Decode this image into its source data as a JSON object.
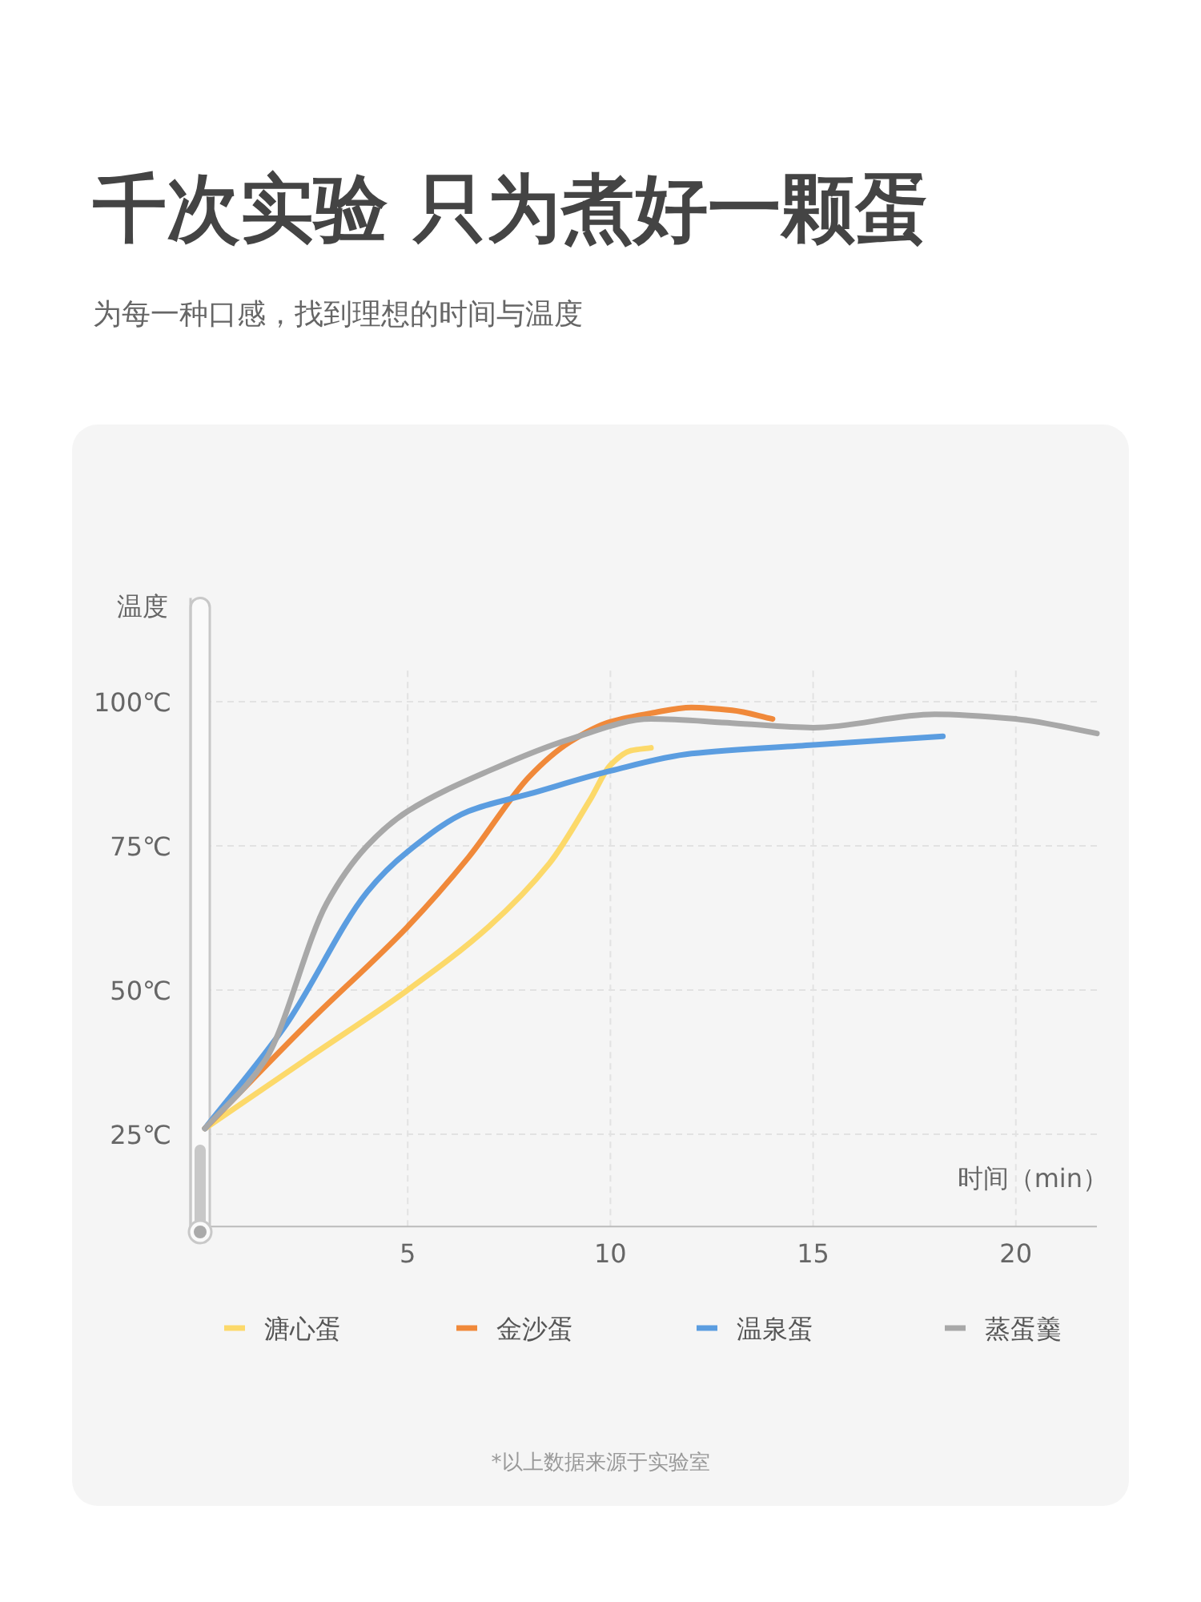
{
  "chart_data": {
    "type": "line",
    "title": "千次实验 只为煮好一颗蛋",
    "subtitle": "为每一种口感，找到理想的时间与温度",
    "xlabel": "时间（min）",
    "ylabel": "温度",
    "xlim": [
      0,
      22
    ],
    "xticks": [
      5,
      10,
      15,
      20
    ],
    "ylim": [
      9,
      118
    ],
    "yticks": [
      {
        "value": 25,
        "label": "25℃"
      },
      {
        "value": 50,
        "label": "50℃"
      },
      {
        "value": 75,
        "label": "75℃"
      },
      {
        "value": 100,
        "label": "100℃"
      }
    ],
    "grid": true,
    "legend": "bottom",
    "marker": "none",
    "line_style": "solid",
    "annotations": [
      "*以上数据来源于实验室"
    ],
    "series": [
      {
        "name": "溏心蛋",
        "color": "#fcd96a",
        "x": [
          0,
          2.5,
          5,
          7,
          8.5,
          9.5,
          10,
          10.5,
          11
        ],
        "values": [
          26,
          38,
          50,
          61,
          72,
          83,
          89,
          91.5,
          92
        ]
      },
      {
        "name": "金沙蛋",
        "color": "#f0893a",
        "x": [
          0,
          2.5,
          5,
          6.5,
          8,
          9,
          10,
          11,
          12,
          13,
          14
        ],
        "values": [
          26,
          44,
          61,
          73,
          87,
          93,
          96.5,
          98,
          99,
          98.5,
          97
        ]
      },
      {
        "name": "温泉蛋",
        "color": "#5b9de0",
        "x": [
          0,
          2,
          4,
          5,
          6.5,
          8,
          10,
          12,
          15,
          18.2
        ],
        "values": [
          26,
          44,
          67,
          74,
          81,
          84,
          88,
          91,
          92.5,
          94
        ]
      },
      {
        "name": "蒸蛋羹",
        "color": "#a8a8a8",
        "x": [
          0,
          1.5,
          3,
          4,
          5,
          7,
          9,
          11,
          13,
          15,
          18,
          20,
          22
        ],
        "values": [
          26,
          38,
          65,
          75,
          81,
          88,
          93.5,
          97,
          96.3,
          95.5,
          97.8,
          97,
          94.5
        ]
      }
    ]
  }
}
